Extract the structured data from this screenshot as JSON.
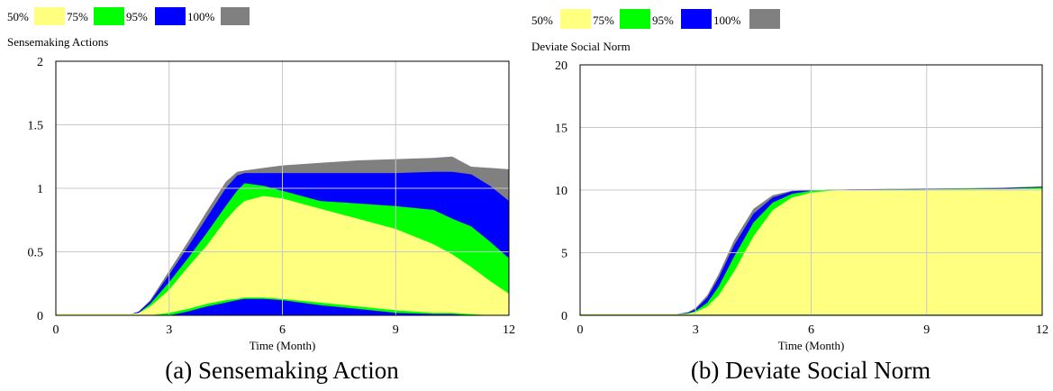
{
  "colors": {
    "p50": "#ffff80",
    "p75": "#00ff00",
    "p95": "#0000ff",
    "p100": "#808080"
  },
  "chart_data": [
    {
      "type": "area",
      "title": "Sensemaking Actions",
      "caption": "(a) Sensemaking Action",
      "xlabel": "Time (Month)",
      "ylabel": "",
      "xlim": [
        0,
        12
      ],
      "ylim": [
        0,
        2
      ],
      "xticks": [
        "0",
        "3",
        "6",
        "9",
        "12"
      ],
      "yticks": [
        "0",
        "0.5",
        "1",
        "1.5",
        "2"
      ],
      "grid": true,
      "legend": [
        "50%",
        "75%",
        "95%",
        "100%"
      ],
      "x": [
        0,
        2,
        2.2,
        2.5,
        3,
        3.5,
        4,
        4.5,
        4.8,
        5,
        5.5,
        6,
        7,
        8,
        9,
        10,
        10.5,
        11,
        11.5,
        12
      ],
      "bands": {
        "100%": {
          "lower": [
            0,
            0,
            0,
            0,
            0,
            0,
            0,
            0,
            0,
            0,
            0,
            0,
            0,
            0,
            0,
            0,
            0,
            0,
            0,
            0
          ],
          "upper": [
            0.01,
            0.01,
            0.03,
            0.12,
            0.35,
            0.58,
            0.82,
            1.05,
            1.13,
            1.14,
            1.16,
            1.18,
            1.2,
            1.22,
            1.23,
            1.24,
            1.25,
            1.17,
            1.16,
            1.15
          ]
        },
        "95%": {
          "lower": [
            0,
            0,
            0,
            0,
            0,
            0,
            0,
            0,
            0,
            0,
            0,
            0,
            0,
            0,
            0,
            0,
            0,
            0,
            0,
            0
          ],
          "upper": [
            0.01,
            0.01,
            0.03,
            0.11,
            0.32,
            0.54,
            0.77,
            1.0,
            1.1,
            1.12,
            1.12,
            1.12,
            1.12,
            1.12,
            1.12,
            1.13,
            1.13,
            1.11,
            1.02,
            0.9
          ]
        },
        "75%": {
          "lower": [
            0,
            0,
            0,
            0,
            0,
            0.03,
            0.07,
            0.1,
            0.12,
            0.13,
            0.13,
            0.12,
            0.08,
            0.05,
            0.02,
            0.01,
            0.01,
            0,
            0,
            0
          ],
          "upper": [
            0.01,
            0.01,
            0.02,
            0.09,
            0.26,
            0.45,
            0.65,
            0.86,
            0.98,
            1.04,
            1.02,
            0.98,
            0.9,
            0.88,
            0.86,
            0.83,
            0.76,
            0.7,
            0.58,
            0.45
          ]
        },
        "50%": {
          "lower": [
            0,
            0,
            0,
            0,
            0.02,
            0.05,
            0.09,
            0.12,
            0.13,
            0.14,
            0.14,
            0.13,
            0.1,
            0.07,
            0.04,
            0.02,
            0.02,
            0.01,
            0,
            0
          ],
          "upper": [
            0.01,
            0.01,
            0.02,
            0.07,
            0.2,
            0.38,
            0.55,
            0.75,
            0.85,
            0.9,
            0.94,
            0.92,
            0.84,
            0.76,
            0.68,
            0.56,
            0.48,
            0.38,
            0.27,
            0.17
          ]
        }
      }
    },
    {
      "type": "area",
      "title": "Deviate Social Norm",
      "caption": "(b) Deviate Social Norm",
      "xlabel": "Time (Month)",
      "ylabel": "",
      "xlim": [
        0,
        12
      ],
      "ylim": [
        0,
        20
      ],
      "xticks": [
        "0",
        "3",
        "6",
        "9",
        "12"
      ],
      "yticks": [
        "0",
        "5",
        "10",
        "15",
        "20"
      ],
      "grid": true,
      "legend": [
        "50%",
        "75%",
        "95%",
        "100%"
      ],
      "x": [
        0,
        2.5,
        2.8,
        3,
        3.3,
        3.6,
        4,
        4.5,
        5,
        5.5,
        6,
        6.5,
        7,
        8,
        9,
        10,
        11,
        12
      ],
      "bands": {
        "100%": {
          "lower": [
            0,
            0,
            0,
            0,
            0,
            0,
            0,
            0,
            0,
            0,
            0,
            0,
            0,
            0,
            0,
            0,
            0,
            0
          ],
          "upper": [
            0.1,
            0.1,
            0.25,
            0.6,
            1.6,
            3.3,
            6.0,
            8.5,
            9.6,
            9.95,
            10.0,
            10.05,
            10.05,
            10.1,
            10.1,
            10.15,
            10.2,
            10.3
          ]
        },
        "95%": {
          "lower": [
            0.05,
            0.05,
            0.05,
            0.05,
            0.05,
            0.05,
            0.05,
            0.05,
            0.05,
            0.05,
            0.05,
            0.05,
            0.05,
            0.05,
            0.05,
            0.05,
            0.05,
            0.05
          ],
          "upper": [
            0.1,
            0.1,
            0.2,
            0.5,
            1.4,
            3.0,
            5.6,
            8.1,
            9.4,
            9.9,
            10.0,
            10.0,
            10.05,
            10.05,
            10.1,
            10.1,
            10.15,
            10.25
          ]
        },
        "75%": {
          "lower": [
            0.05,
            0.05,
            0.05,
            0.05,
            0.05,
            0.05,
            0.05,
            0.05,
            0.05,
            0.05,
            0.05,
            0.05,
            0.05,
            0.05,
            0.05,
            0.05,
            0.05,
            0.05
          ],
          "upper": [
            0.1,
            0.1,
            0.15,
            0.35,
            1.0,
            2.3,
            4.7,
            7.4,
            9.0,
            9.7,
            9.95,
            10.0,
            10.0,
            10.05,
            10.05,
            10.1,
            10.1,
            10.2
          ]
        },
        "50%": {
          "lower": [
            0.05,
            0.05,
            0.05,
            0.05,
            0.05,
            0.05,
            0.05,
            0.05,
            0.05,
            0.05,
            0.05,
            0.05,
            0.05,
            0.05,
            0.05,
            0.05,
            0.05,
            0.05
          ],
          "upper": [
            0.1,
            0.1,
            0.12,
            0.25,
            0.7,
            1.6,
            3.5,
            6.3,
            8.4,
            9.4,
            9.8,
            9.95,
            10.0,
            10.0,
            10.05,
            10.05,
            10.1,
            10.1
          ]
        }
      }
    }
  ]
}
